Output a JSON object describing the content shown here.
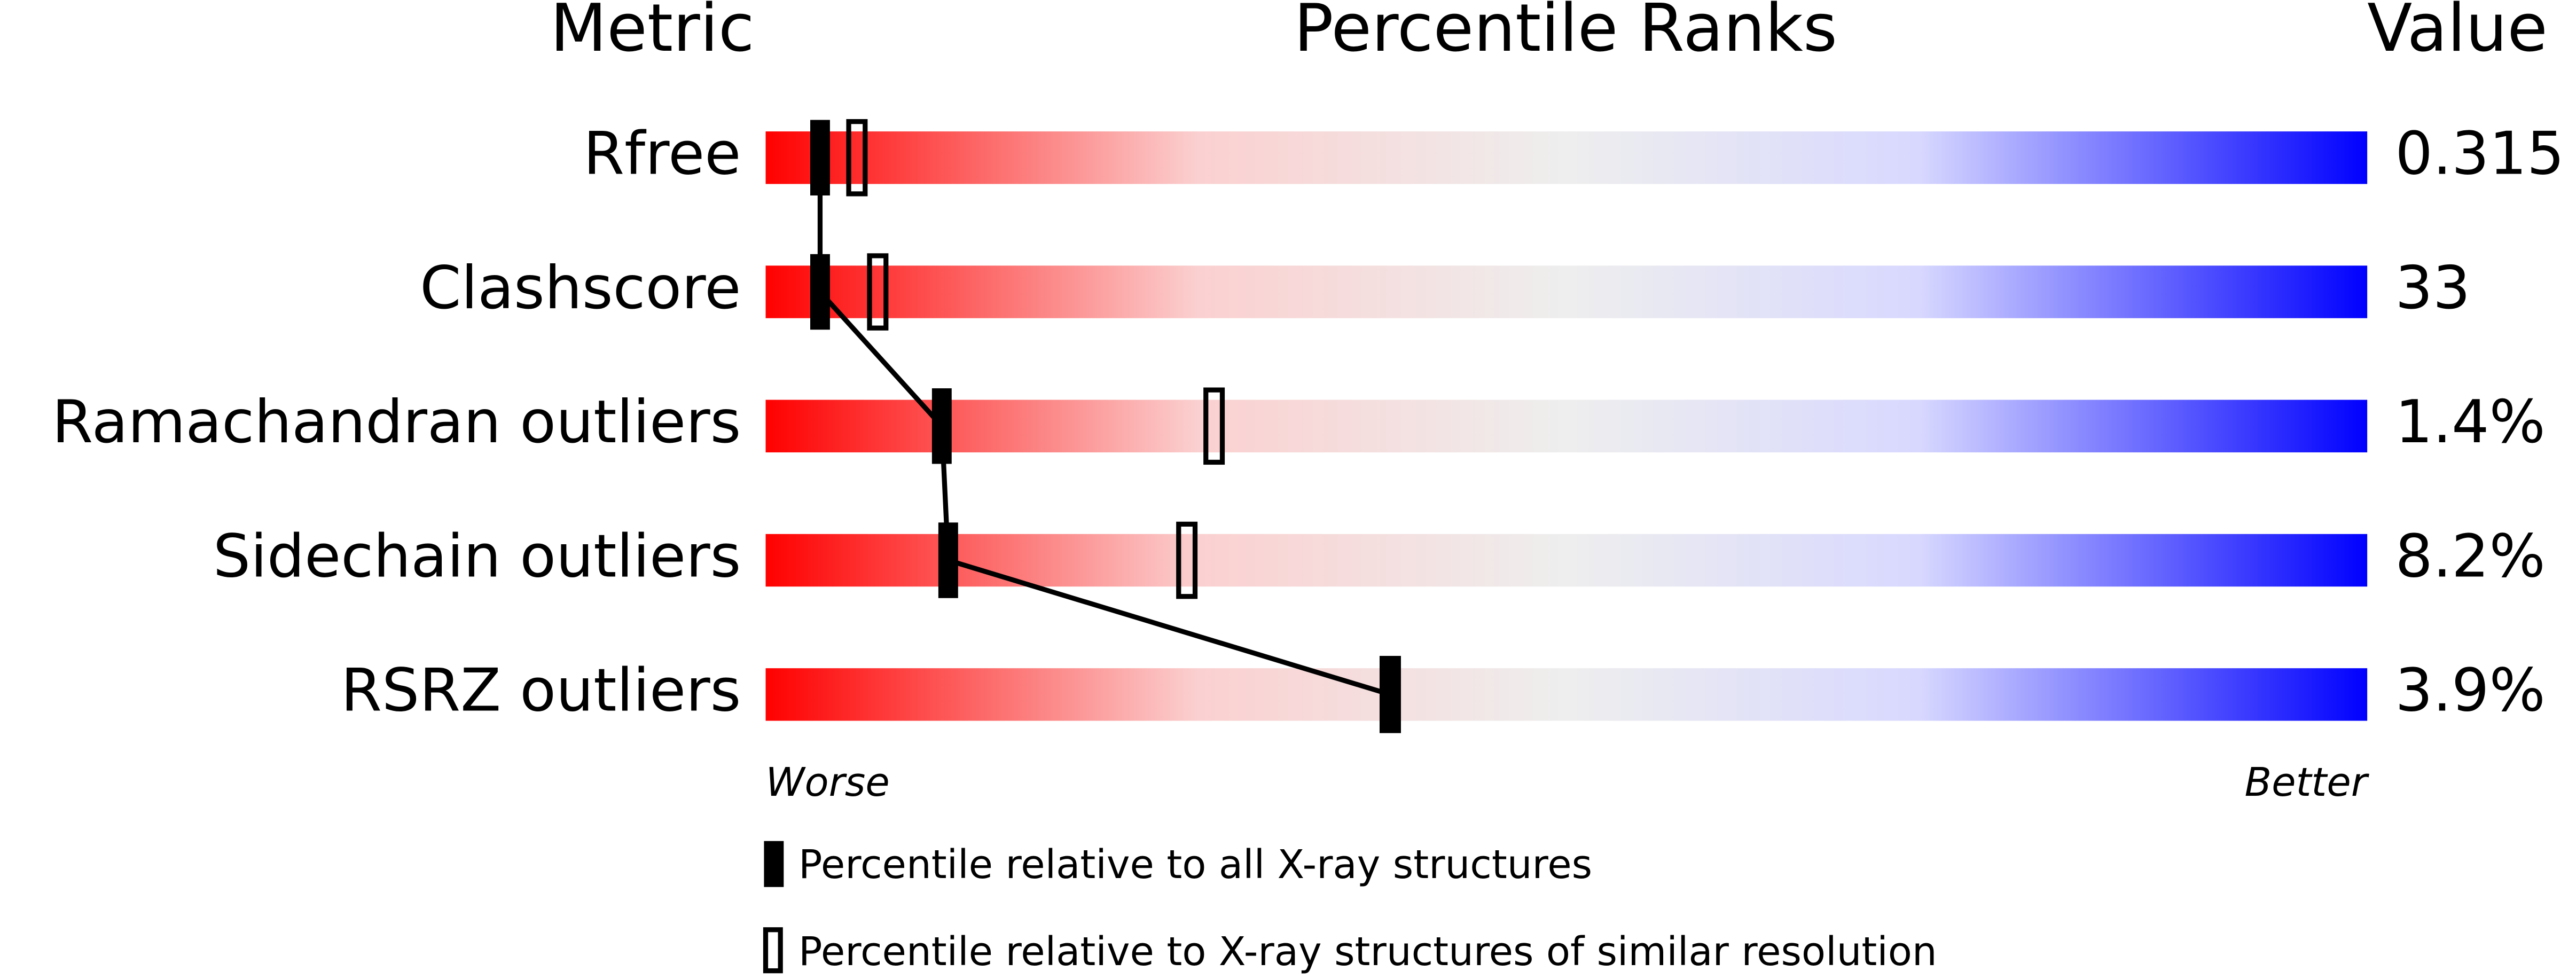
{
  "chart_data": {
    "type": "percentile-slider",
    "column_headers": [
      "Metric",
      "Percentile Ranks",
      "Value"
    ],
    "categories": [
      "Rfree",
      "Clashscore",
      "Ramachandran outliers",
      "Sidechain outliers",
      "RSRZ outliers"
    ],
    "metric_values": [
      "0.315",
      "33",
      "1.4%",
      "8.2%",
      "3.9%"
    ],
    "xlim": [
      0,
      100
    ],
    "x_end_labels": [
      "Worse",
      "Better"
    ],
    "series": [
      {
        "name": "Percentile relative to all X-ray structures",
        "color": "#000000",
        "style": "filled",
        "values": [
          3.4,
          3.4,
          11,
          11.4,
          39
        ]
      },
      {
        "name": "Percentile relative to X-ray structures of similar resolution",
        "color": "#000000",
        "style": "hollow",
        "values": [
          5.7,
          7,
          28,
          26.3,
          39
        ]
      }
    ],
    "connect_series": 0
  }
}
